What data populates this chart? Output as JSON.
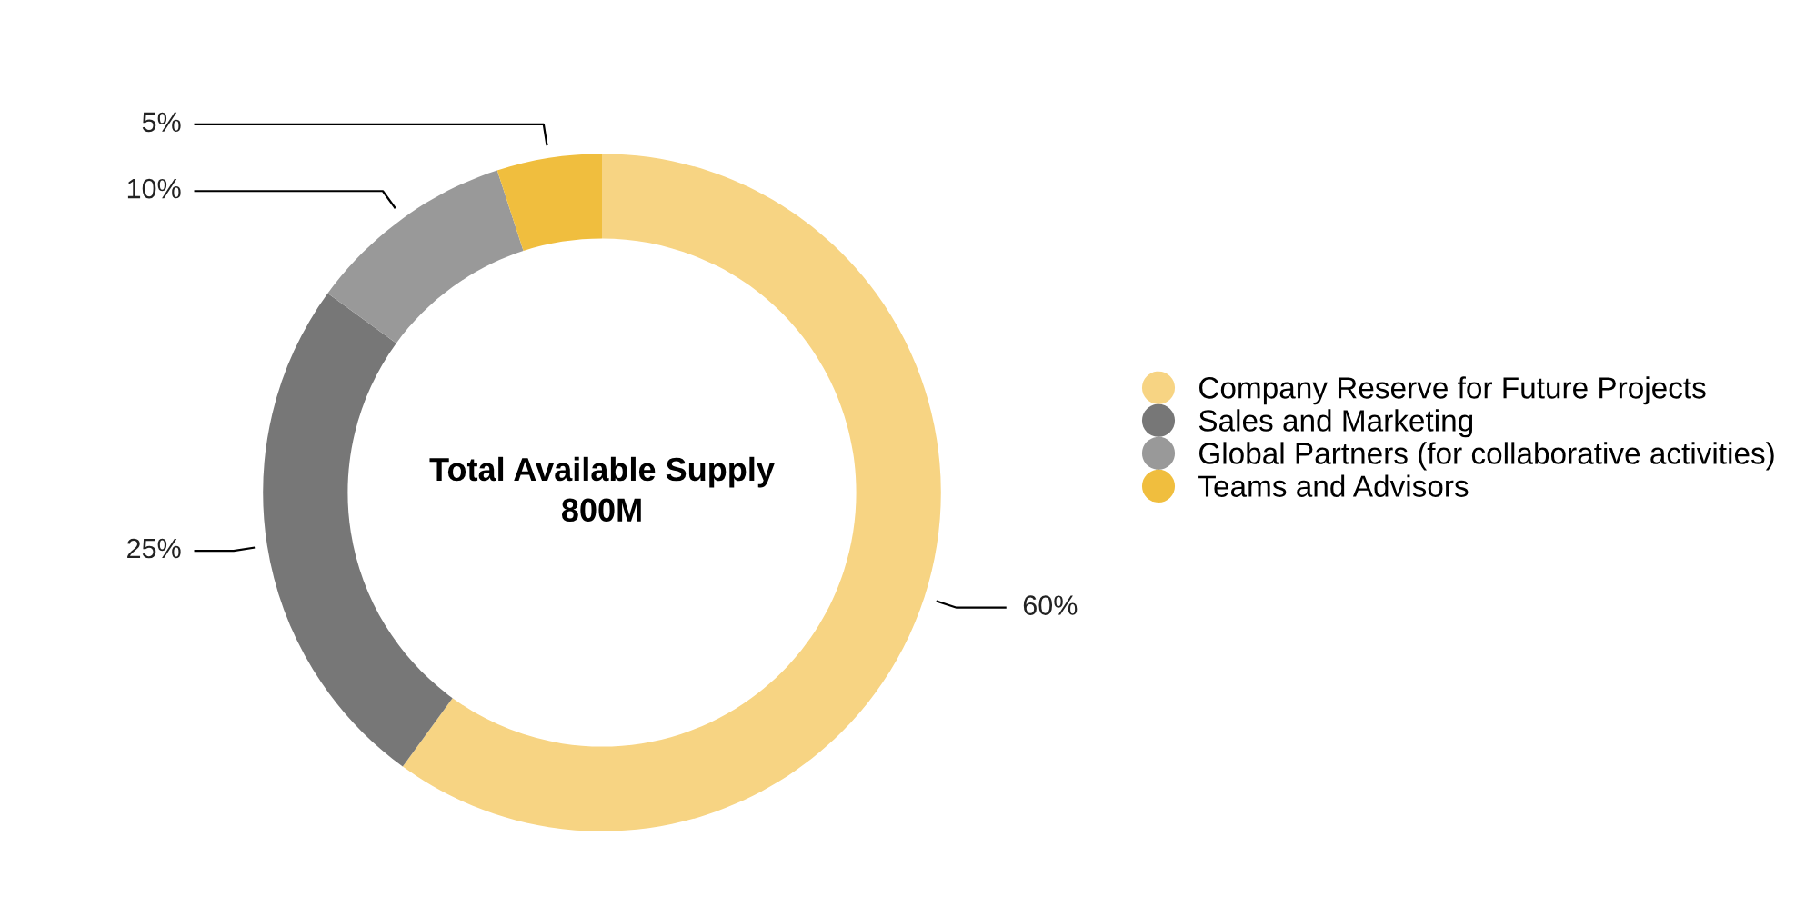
{
  "chart_data": {
    "type": "donut",
    "title": "Total Available Supply",
    "subtitle": "800M",
    "categories": [
      "Company Reserve for Future Projects",
      "Sales and Marketing",
      "Global Partners (for collaborative activities)",
      "Teams and Advisors"
    ],
    "values": [
      60,
      25,
      10,
      5
    ],
    "colors": [
      "#f7d483",
      "#777777",
      "#999999",
      "#f0be3e"
    ],
    "value_labels": [
      "60%",
      "25%",
      "10%",
      "5%"
    ],
    "legend": "right"
  }
}
